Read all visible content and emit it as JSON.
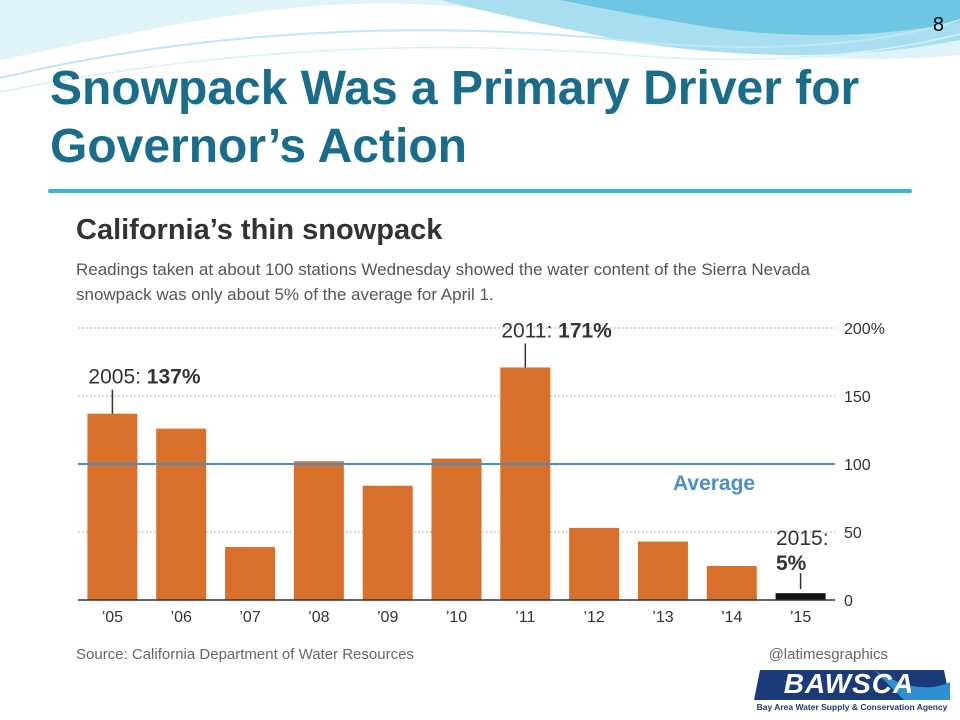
{
  "slide": {
    "page_number": "8",
    "title": "Snowpack Was a Primary Driver for Governor’s Action",
    "accent_color": "#1a6d8a",
    "rule_color": "#35b6d6"
  },
  "chart_data": {
    "type": "bar",
    "title": "California’s thin snowpack",
    "subtitle": "Readings taken at about 100 stations Wednesday showed the water content of the Sierra Nevada snowpack was only about 5% of the average for April 1.",
    "categories": [
      "’05",
      "’06",
      "’07",
      "’08",
      "’09",
      "’10",
      "’11",
      "’12",
      "’13",
      "’14",
      "’15"
    ],
    "values": [
      137,
      126,
      39,
      102,
      84,
      104,
      171,
      53,
      43,
      25,
      5
    ],
    "ylim": [
      0,
      200
    ],
    "yticks": [
      {
        "value": 0,
        "label": "0"
      },
      {
        "value": 50,
        "label": "50"
      },
      {
        "value": 100,
        "label": "100"
      },
      {
        "value": 150,
        "label": "150"
      },
      {
        "value": 200,
        "label": "200%"
      }
    ],
    "grid": true,
    "reference_line": {
      "value": 100,
      "label": "Average",
      "color": "#4a8fc9"
    },
    "annotations": [
      {
        "index": 0,
        "prefix": "2005: ",
        "value_text": "137%"
      },
      {
        "index": 6,
        "prefix": "2011: ",
        "value_text": "171%"
      },
      {
        "index": 10,
        "prefix": "2015:",
        "value_text": "5%"
      }
    ],
    "bar_color": "#d86f2a",
    "highlight_bar_color": "#111111",
    "source": "Source: California Department of Water Resources",
    "credit": "@latimesgraphics"
  },
  "logo": {
    "name": "BAWSCA",
    "tagline": "Bay Area Water Supply & Conservation Agency",
    "color": "#1b3a7a"
  }
}
